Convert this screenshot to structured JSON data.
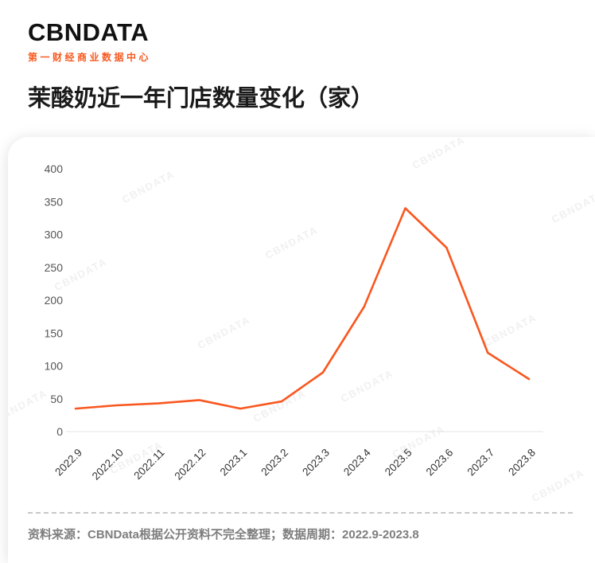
{
  "brand": {
    "logo_text": "CBNDATA",
    "subtitle": "第一财经商业数据中心",
    "accent_color": "#f75920"
  },
  "page_title": "茉酸奶近一年门店数量变化（家）",
  "watermark_text": "CBNDATA",
  "footer": {
    "text": "资料来源：CBNData根据公开资料不完全整理；数据周期：2022.9-2023.8"
  },
  "chart_data": {
    "type": "line",
    "title": "茉酸奶近一年门店数量变化（家）",
    "categories": [
      "2022.9",
      "2022.10",
      "2022.11",
      "2022.12",
      "2023.1",
      "2023.2",
      "2023.3",
      "2023.4",
      "2023.5",
      "2023.6",
      "2023.7",
      "2023.8"
    ],
    "values": [
      35,
      40,
      43,
      48,
      35,
      46,
      90,
      190,
      340,
      280,
      120,
      80
    ],
    "xlabel": "",
    "ylabel": "",
    "ylim": [
      0,
      400
    ],
    "y_ticks": [
      0,
      50,
      100,
      150,
      200,
      250,
      300,
      350,
      400
    ],
    "line_color": "#f9571f",
    "grid": false,
    "legend": "none"
  }
}
